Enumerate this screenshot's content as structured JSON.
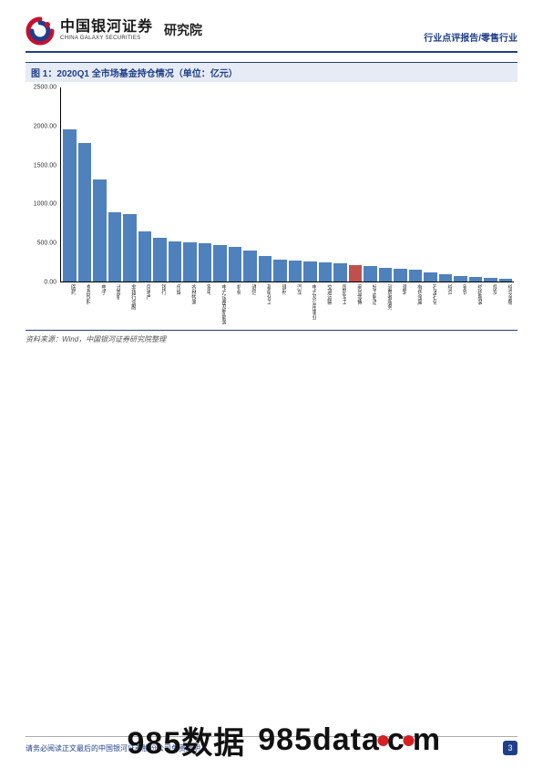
{
  "header": {
    "brand_cn": "中国银河证券",
    "brand_en": "CHINA GALAXY SECURITIES",
    "division": "研究院",
    "right_text": "行业点评报告/零售行业"
  },
  "chart": {
    "title": "图 1：2020Q1 全市场基金持仓情况（单位：亿元）",
    "type": "bar",
    "y_axis": {
      "min": 0,
      "max": 2500,
      "ticks": [
        0,
        500,
        1000,
        1500,
        2000,
        2500
      ],
      "tick_labels": [
        "0.00",
        "500.00",
        "1000.00",
        "1500.00",
        "2000.00",
        "2500.00"
      ],
      "tick_fontsize": 7,
      "tick_color": "#333333"
    },
    "default_bar_color": "#4f81bd",
    "highlight_color": "#c0504d",
    "axis_line_color": "#000000",
    "background_color": "#ffffff",
    "x_label_fontsize": 6,
    "series": [
      {
        "label": "医药",
        "value": 1960
      },
      {
        "label": "食品饮料",
        "value": 1790
      },
      {
        "label": "电子",
        "value": 1310
      },
      {
        "label": "计算机",
        "value": 890
      },
      {
        "label": "非银行金融",
        "value": 870
      },
      {
        "label": "房地产",
        "value": 640
      },
      {
        "label": "银行",
        "value": 560
      },
      {
        "label": "传媒",
        "value": 520
      },
      {
        "label": "农林牧渔",
        "value": 500
      },
      {
        "label": "家电",
        "value": 490
      },
      {
        "label": "电力设备及新能源",
        "value": 470
      },
      {
        "label": "机械",
        "value": 450
      },
      {
        "label": "通信",
        "value": 400
      },
      {
        "label": "基础化工",
        "value": 330
      },
      {
        "label": "建材",
        "value": 280
      },
      {
        "label": "汽车",
        "value": 270
      },
      {
        "label": "电力及公用事业",
        "value": 260
      },
      {
        "label": "交通运输",
        "value": 250
      },
      {
        "label": "国防军工",
        "value": 230
      },
      {
        "label": "商贸零售",
        "value": 210,
        "highlight": true
      },
      {
        "label": "轻工制造",
        "value": 200
      },
      {
        "label": "消费者服务",
        "value": 180
      },
      {
        "label": "建筑",
        "value": 160
      },
      {
        "label": "有色金属",
        "value": 150
      },
      {
        "label": "石油石化",
        "value": 120
      },
      {
        "label": "综合",
        "value": 90
      },
      {
        "label": "钢铁",
        "value": 70
      },
      {
        "label": "纺织服装",
        "value": 60
      },
      {
        "label": "煤炭",
        "value": 45
      },
      {
        "label": "综合金融",
        "value": 30
      }
    ]
  },
  "source": "资料来源：Wind，中国银河证券研究院整理",
  "footer": {
    "text": "请务必阅读正文最后的中国银河证券股份公司免责声明",
    "page_number": "3"
  },
  "watermark": {
    "part1": "985数据",
    "part2_a": "985data",
    "part2_c": "c",
    "part2_m": "m",
    "dot_color": "#d62024"
  },
  "logo": {
    "outer_color": "#c8102e",
    "inner_color": "#1f3f8a"
  }
}
